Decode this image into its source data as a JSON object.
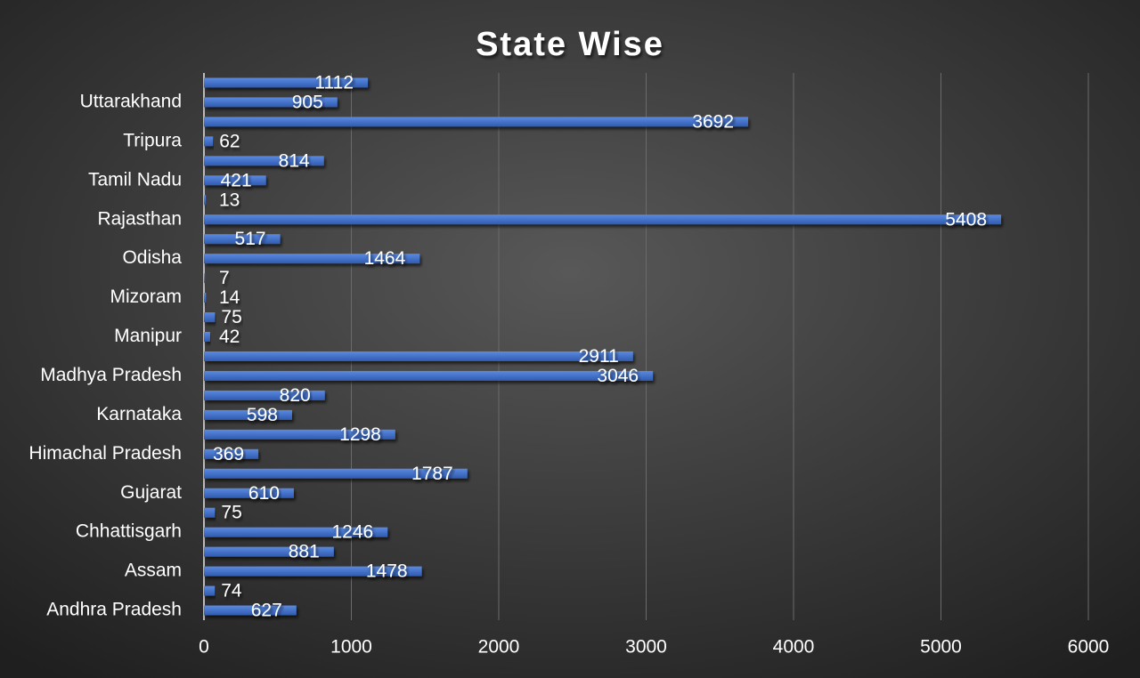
{
  "chart_data": {
    "type": "bar",
    "orientation": "horizontal",
    "title": "State Wise",
    "categories": [
      "Andhra Pradesh",
      null,
      "Assam",
      null,
      "Chhattisgarh",
      null,
      "Gujarat",
      null,
      "Himachal Pradesh",
      null,
      "Karnataka",
      null,
      "Madhya Pradesh",
      null,
      "Manipur",
      null,
      "Mizoram",
      null,
      "Odisha",
      null,
      "Rajasthan",
      null,
      "Tamil Nadu",
      null,
      "Tripura",
      null,
      "Uttarakhand",
      null
    ],
    "values": [
      627,
      74,
      1478,
      881,
      1246,
      75,
      610,
      1787,
      369,
      1298,
      598,
      820,
      3046,
      2911,
      42,
      75,
      14,
      7,
      1464,
      517,
      5408,
      13,
      421,
      814,
      62,
      3692,
      905,
      1112
    ],
    "color": "#4472c4",
    "xlim": [
      0,
      6000
    ],
    "xticks": [
      0,
      1000,
      2000,
      3000,
      4000,
      5000,
      6000
    ],
    "grid": true
  }
}
